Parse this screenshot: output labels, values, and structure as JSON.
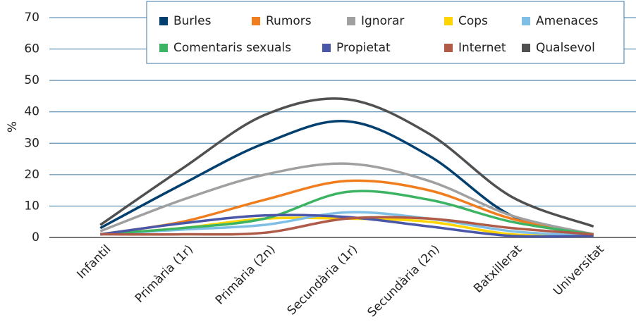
{
  "chart_data": {
    "type": "line",
    "y_label": "%",
    "categories": [
      "Infantil",
      "Primària (1r)",
      "Primària (2n)",
      "Secundària (1r)",
      "Secundària (2n)",
      "Batxillerat",
      "Universitat"
    ],
    "series": [
      {
        "name": "Burles",
        "color": "#003f6e",
        "values": [
          3,
          17,
          30,
          37,
          26,
          7,
          1
        ]
      },
      {
        "name": "Rumors",
        "color": "#f07d1e",
        "values": [
          1,
          5,
          12,
          18,
          15,
          6,
          1
        ]
      },
      {
        "name": "Ignorar",
        "color": "#a0a0a0",
        "values": [
          2,
          12,
          20,
          23.5,
          18,
          7,
          1
        ]
      },
      {
        "name": "Cops",
        "color": "#ffd400",
        "values": [
          1,
          3,
          6,
          6,
          5,
          1,
          0.5
        ]
      },
      {
        "name": "Amenaces",
        "color": "#7fbfe6",
        "values": [
          1,
          2.5,
          4,
          8,
          6,
          2,
          0.5
        ]
      },
      {
        "name": "Comentaris sexuals",
        "color": "#3cb464",
        "values": [
          1,
          3,
          6,
          14.5,
          12,
          5,
          1
        ]
      },
      {
        "name": "Propietat",
        "color": "#4a56a8",
        "values": [
          1,
          4.5,
          7,
          6.5,
          3.5,
          0.5,
          0.5
        ]
      },
      {
        "name": "Internet",
        "color": "#b05a48",
        "values": [
          1,
          1,
          1.5,
          6,
          6,
          3,
          1
        ]
      },
      {
        "name": "Qualsevol",
        "color": "#505050",
        "values": [
          4,
          22,
          39,
          44,
          33,
          13,
          3.5
        ]
      }
    ],
    "ylim": [
      0,
      70
    ],
    "yticks": [
      0,
      10,
      20,
      30,
      40,
      50,
      60,
      70
    ],
    "grid": true,
    "legend": "top"
  }
}
